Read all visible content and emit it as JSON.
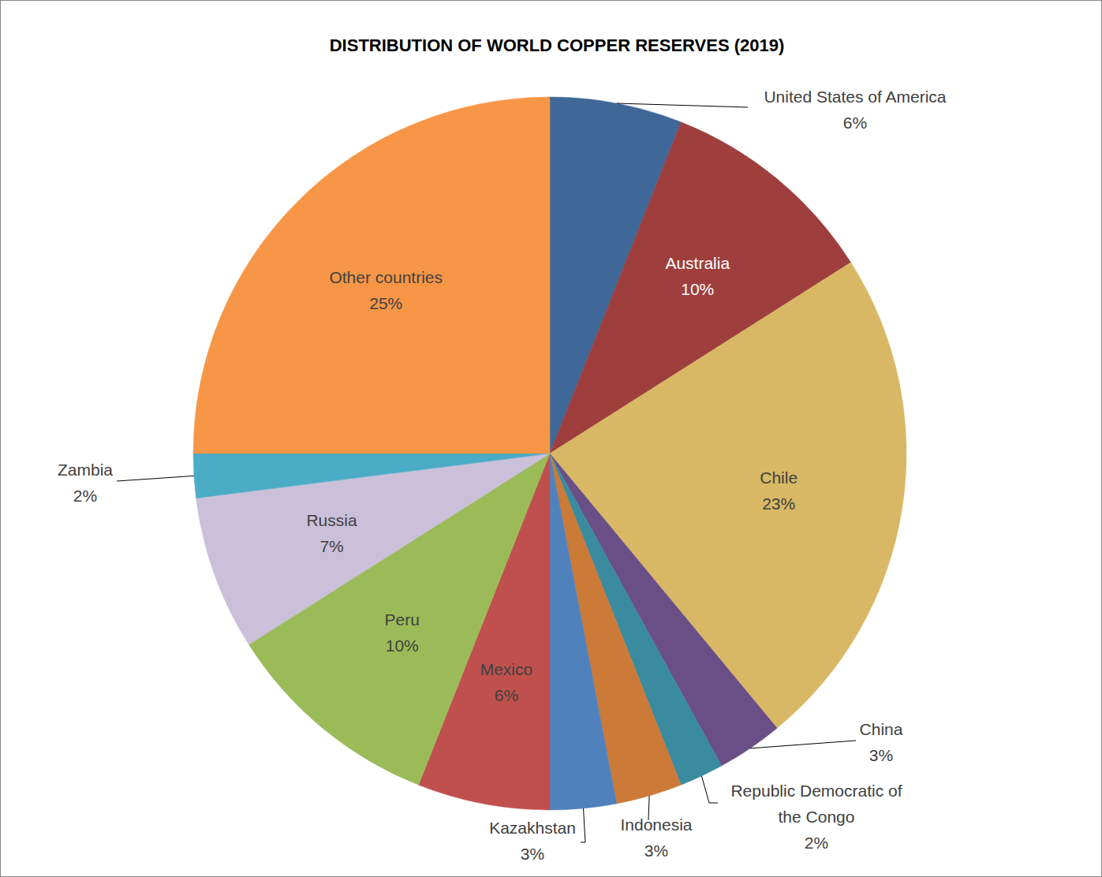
{
  "chart_data": {
    "type": "pie",
    "title": "DISTRIBUTION OF WORLD COPPER RESERVES (2019)",
    "categories": [
      "United States of America",
      "Australia",
      "Chile",
      "China",
      "Republic Democratic of the Congo",
      "Indonesia",
      "Kazakhstan",
      "Mexico",
      "Peru",
      "Russia",
      "Zambia",
      "Other countries"
    ],
    "values": [
      6,
      10,
      23,
      3,
      2,
      3,
      3,
      6,
      10,
      7,
      2,
      25
    ],
    "value_labels": [
      "6%",
      "10%",
      "23%",
      "3%",
      "2%",
      "3%",
      "3%",
      "6%",
      "10%",
      "7%",
      "2%",
      "25%"
    ],
    "colors": [
      "#3f6898",
      "#9e3f3e",
      "#d8b864",
      "#6a4f86",
      "#3a8ba0",
      "#cb7a37",
      "#4f81bd",
      "#c0504d",
      "#9bbb59",
      "#cbc0da",
      "#4bacc6",
      "#f79646"
    ],
    "data_labels": true
  }
}
